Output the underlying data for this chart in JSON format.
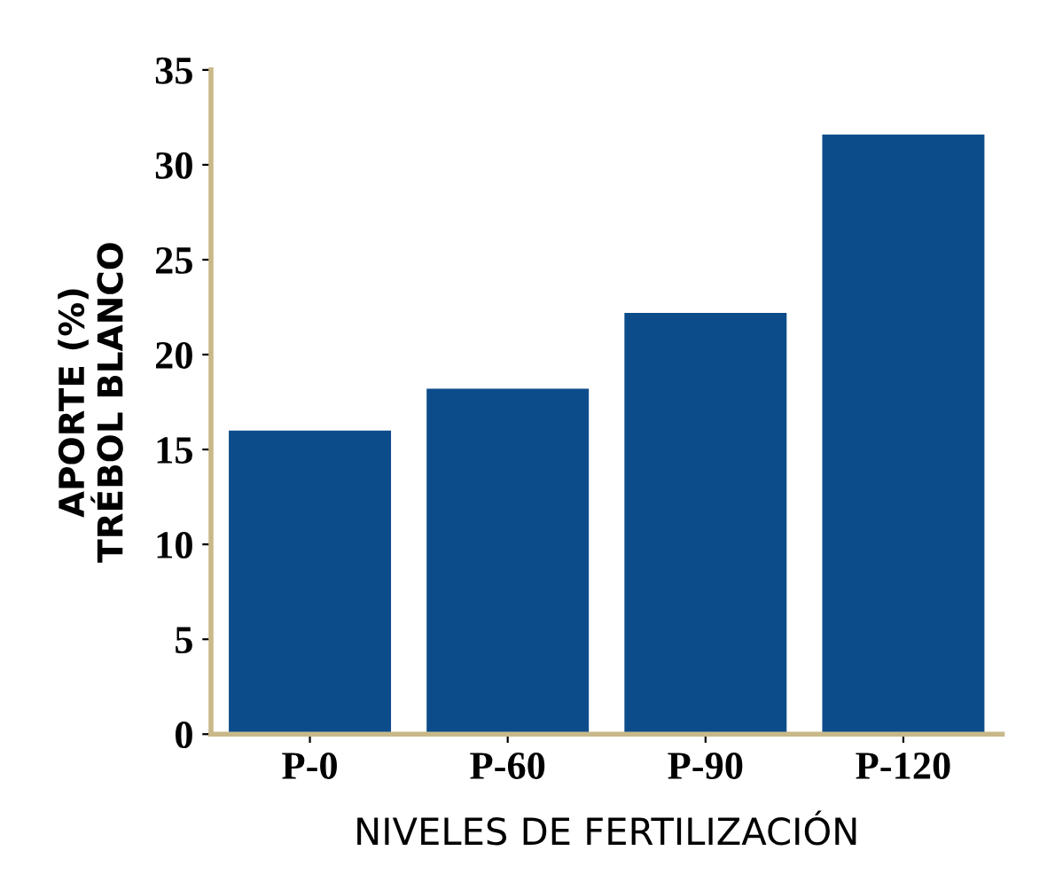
{
  "chart_data": {
    "type": "bar",
    "xlabel": "NIVELES DE FERTILIZACIÓN",
    "ylabel": "APORTE (%)\nTRÉBOL BLANCO",
    "categories": [
      "P-0",
      "P-60",
      "P-90",
      "P-120"
    ],
    "values": [
      16,
      18.2,
      22.2,
      31.6
    ],
    "color": "#0d4c8b",
    "ylim": [
      0,
      35
    ],
    "yticks": [
      0,
      5,
      10,
      15,
      20,
      25,
      30,
      35
    ]
  }
}
